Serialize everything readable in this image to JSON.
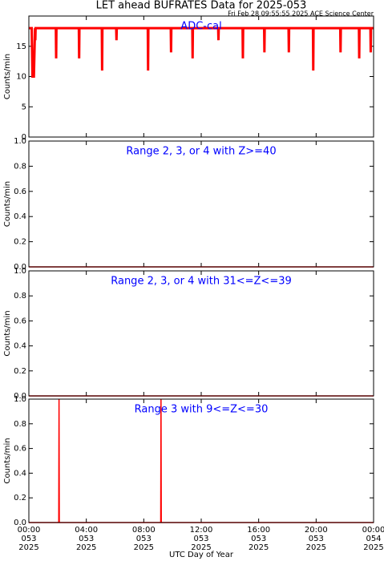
{
  "chart_data": [
    {
      "type": "line",
      "title": "LET ahead BUFRATES Data for 2025-053",
      "subtitle": "Fri Feb 28 09:55:55 2025 ACE Science Center",
      "annotation": "ADC-cal",
      "ylabel": "Counts/min",
      "color": "#ff0000",
      "x": [
        0,
        0.2,
        0.25,
        0.35,
        0.43,
        0.45,
        0.47,
        1.88,
        1.9,
        1.92,
        3.48,
        3.5,
        3.52,
        5.08,
        5.1,
        5.12,
        6.08,
        6.1,
        6.12,
        8.28,
        8.3,
        8.32,
        9.88,
        9.9,
        9.92,
        11.38,
        11.4,
        11.42,
        13.18,
        13.2,
        13.22,
        14.88,
        14.9,
        14.92,
        16.38,
        16.4,
        16.42,
        18.08,
        18.1,
        18.12,
        19.78,
        19.8,
        19.82,
        21.68,
        21.7,
        21.72,
        22.98,
        23.0,
        23.02,
        23.78,
        23.8,
        23.82,
        24
      ],
      "values": [
        18,
        18,
        10,
        10,
        18,
        16,
        18,
        18,
        13,
        18,
        18,
        13,
        18,
        18,
        11,
        18,
        18,
        16,
        18,
        18,
        11,
        18,
        18,
        14,
        18,
        18,
        13,
        18,
        18,
        16,
        18,
        18,
        13,
        18,
        18,
        14,
        18,
        18,
        14,
        18,
        18,
        11,
        18,
        18,
        14,
        18,
        18,
        13,
        18,
        18,
        14,
        18,
        18
      ],
      "xlim": [
        0,
        24
      ],
      "xticks": [
        0,
        4,
        8,
        12,
        16,
        20,
        24
      ],
      "ylim": [
        0,
        20
      ],
      "yticks": [
        0,
        5,
        10,
        15
      ]
    },
    {
      "type": "line",
      "annotation": "Range 2, 3, or 4 with Z>=40",
      "ylabel": "Counts/min",
      "color": "#ff0000",
      "x": [
        0,
        24
      ],
      "values": [
        0,
        0
      ],
      "xlim": [
        0,
        24
      ],
      "xticks": [
        0,
        4,
        8,
        12,
        16,
        20,
        24
      ],
      "ylim": [
        0,
        1
      ],
      "yticks": [
        {
          "value": 0,
          "label": "0.0"
        },
        {
          "value": 0.2,
          "label": "0.2"
        },
        {
          "value": 0.4,
          "label": "0.4"
        },
        {
          "value": 0.6,
          "label": "0.6"
        },
        {
          "value": 0.8,
          "label": "0.8"
        },
        {
          "value": 1,
          "label": "1.0"
        }
      ]
    },
    {
      "type": "line",
      "annotation": "Range 2, 3, or 4 with 31<=Z<=39",
      "ylabel": "Counts/min",
      "color": "#ff0000",
      "x": [
        0,
        24
      ],
      "values": [
        0,
        0
      ],
      "xlim": [
        0,
        24
      ],
      "xticks": [
        0,
        4,
        8,
        12,
        16,
        20,
        24
      ],
      "ylim": [
        0,
        1
      ],
      "yticks": [
        {
          "value": 0,
          "label": "0.0"
        },
        {
          "value": 0.2,
          "label": "0.2"
        },
        {
          "value": 0.4,
          "label": "0.4"
        },
        {
          "value": 0.6,
          "label": "0.6"
        },
        {
          "value": 0.8,
          "label": "0.8"
        },
        {
          "value": 1,
          "label": "1.0"
        }
      ]
    },
    {
      "type": "line",
      "annotation": "Range 3 with 9<=Z<=30",
      "ylabel": "Counts/min",
      "xlabel": "UTC Day of Year",
      "color": "#ff0000",
      "x": [
        0,
        2.08,
        2.1,
        2.12,
        9.18,
        9.2,
        9.22,
        24
      ],
      "values": [
        0,
        0,
        1,
        0,
        0,
        1,
        0,
        0
      ],
      "xlim": [
        0,
        24
      ],
      "xticks": [
        {
          "value": 0,
          "label": [
            "00:00",
            "053",
            "2025"
          ]
        },
        {
          "value": 4,
          "label": [
            "04:00",
            "053",
            "2025"
          ]
        },
        {
          "value": 8,
          "label": [
            "08:00",
            "053",
            "2025"
          ]
        },
        {
          "value": 12,
          "label": [
            "12:00",
            "053",
            "2025"
          ]
        },
        {
          "value": 16,
          "label": [
            "16:00",
            "053",
            "2025"
          ]
        },
        {
          "value": 20,
          "label": [
            "20:00",
            "053",
            "2025"
          ]
        },
        {
          "value": 24,
          "label": [
            "00:00",
            "054",
            "2025"
          ]
        }
      ],
      "ylim": [
        0,
        1
      ],
      "yticks": [
        {
          "value": 0,
          "label": "0.0"
        },
        {
          "value": 0.2,
          "label": "0.2"
        },
        {
          "value": 0.4,
          "label": "0.4"
        },
        {
          "value": 0.6,
          "label": "0.6"
        },
        {
          "value": 0.8,
          "label": "0.8"
        },
        {
          "value": 1,
          "label": "1.0"
        }
      ]
    }
  ]
}
